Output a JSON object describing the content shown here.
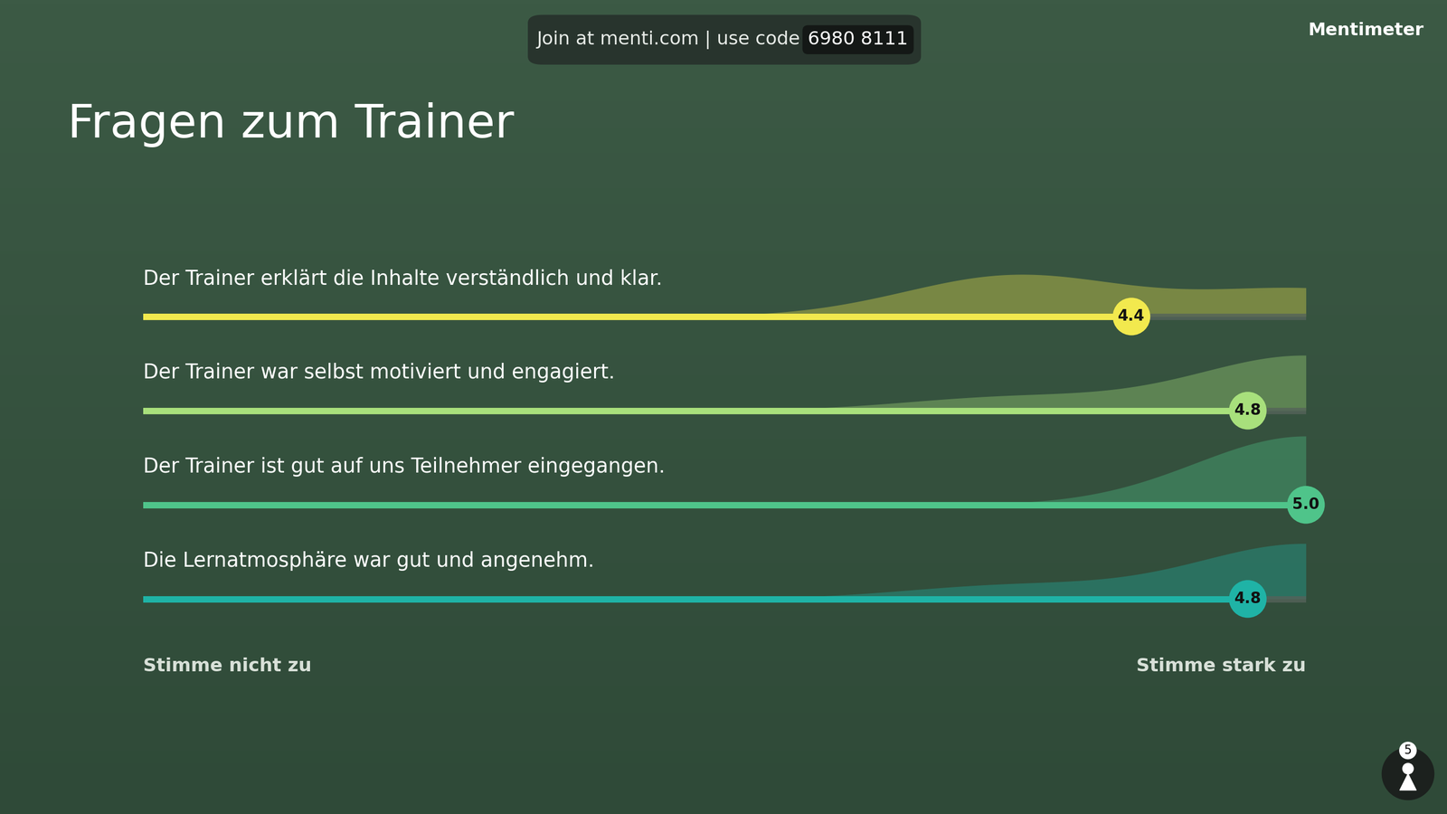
{
  "header": {
    "join_text": "Join at menti.com | use code",
    "code": "6980 8111",
    "brand": "Mentimeter"
  },
  "chart_data": {
    "type": "rating_scale",
    "title": "Fragen zum Trainer",
    "categories": [
      "Der Trainer erklärt die Inhalte verständlich und klar.",
      "Der Trainer war selbst motiviert und engagiert.",
      "Der Trainer ist gut auf uns Teilnehmer eingegangen.",
      "Die Lernatmosphäre war gut und angenehm."
    ],
    "values": [
      4.4,
      4.8,
      5.0,
      4.8
    ],
    "xlim": [
      1,
      5
    ],
    "scale_labels": [
      "Stimme nicht zu",
      "Stimme stark zu"
    ],
    "distribution": {
      "scores": [
        1,
        2,
        3,
        4,
        5
      ],
      "counts": [
        [
          0,
          0,
          0,
          3,
          2
        ],
        [
          0,
          0,
          0,
          1,
          4
        ],
        [
          0,
          0,
          0,
          0,
          5
        ],
        [
          0,
          0,
          0,
          1,
          4
        ]
      ]
    },
    "colors": [
      "#f2e94e",
      "#a8e07c",
      "#4fc48a",
      "#1fb3a6"
    ],
    "data_labels": true,
    "tick_labels": false,
    "grid": false
  },
  "participants": 5
}
